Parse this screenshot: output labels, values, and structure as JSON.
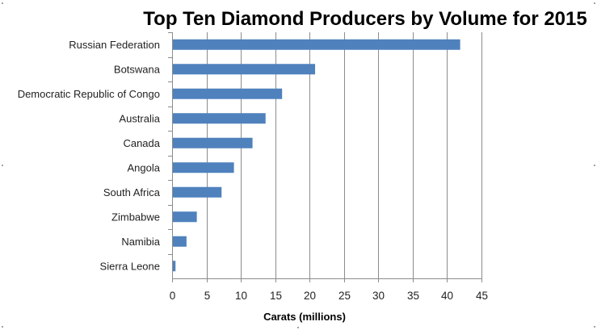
{
  "chart_data": {
    "type": "bar",
    "orientation": "horizontal",
    "title": "Top Ten Diamond Producers by Volume for 2015",
    "xlabel": "Carats (millions)",
    "ylabel": "",
    "categories": [
      "Russian Federation",
      "Botswana",
      "Democratic Republic of Congo",
      "Australia",
      "Canada",
      "Angola",
      "South Africa",
      "Zimbabwe",
      "Namibia",
      "Sierra Leone"
    ],
    "values": [
      41.9,
      20.8,
      16.0,
      13.6,
      11.7,
      9.0,
      7.2,
      3.6,
      2.1,
      0.5
    ],
    "xlim": [
      0,
      45
    ],
    "xticks": [
      "0",
      "5",
      "10",
      "15",
      "20",
      "25",
      "30",
      "35",
      "40",
      "45"
    ],
    "grid": "vertical",
    "legend": "none",
    "bar_color": "#4f81bd"
  }
}
